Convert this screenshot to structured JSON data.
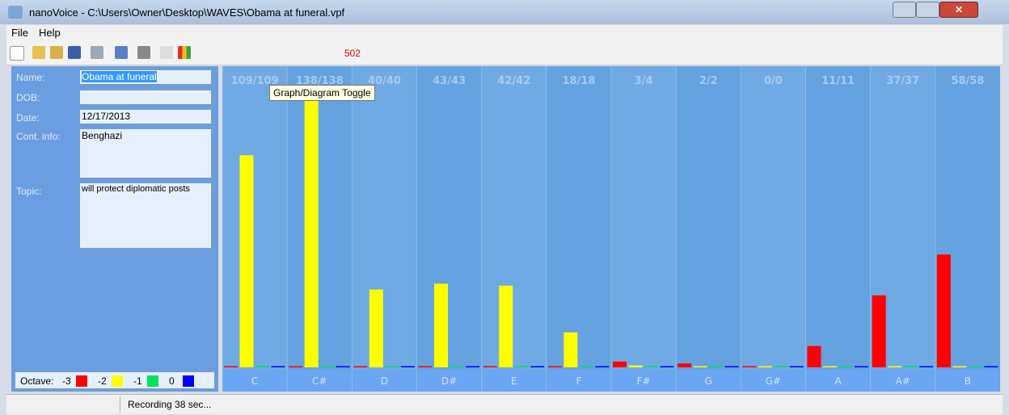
{
  "window": {
    "title": "nanoVoice - C:\\Users\\Owner\\Desktop\\WAVES\\Obama at funeral.vpf"
  },
  "menu": [
    "File",
    "Help"
  ],
  "toolbar": {
    "counter": 502
  },
  "tooltip": "Graph/Diagram Toggle",
  "form": {
    "fields": [
      {
        "label": "Name:",
        "value": "Obama at funeral"
      },
      {
        "label": "DOB:"
      },
      {
        "label": "Date:",
        "value": "12/17/2013"
      },
      {
        "label": "Cont. info:",
        "value": "Benghazi"
      },
      {
        "label": "Topic:",
        "value": "will protect diplomatic posts"
      }
    ]
  },
  "legend_title": "Octave:",
  "status": "Recording 38 sec...",
  "chart_data": {
    "type": "bar",
    "categories": [
      "C",
      "C#",
      "D",
      "D#",
      "E",
      "F",
      "F#",
      "G",
      "G#",
      "A",
      "A#",
      "B"
    ],
    "column_labels": [
      "109/109",
      "138/138",
      "40/40",
      "43/43",
      "42/42",
      "18/18",
      "3/4",
      "2/2",
      "0/0",
      "11/11",
      "37/37",
      "58/58"
    ],
    "series": [
      {
        "name": "-3",
        "color": "#ff0000",
        "values": [
          0,
          0,
          0,
          0,
          0,
          0,
          3,
          2,
          0,
          11,
          37,
          58
        ]
      },
      {
        "name": "-2",
        "color": "#ffff00",
        "values": [
          109,
          138,
          40,
          43,
          42,
          18,
          1,
          0,
          0,
          0,
          0,
          0
        ]
      },
      {
        "name": "-1",
        "color": "#00e060",
        "values": [
          0,
          0,
          0,
          0,
          0,
          0,
          0,
          0,
          0,
          0,
          0,
          0
        ]
      },
      {
        "name": "0",
        "color": "#0000ff",
        "values": [
          0,
          0,
          0,
          0,
          0,
          0,
          0,
          0,
          0,
          0,
          0,
          0
        ]
      }
    ]
  }
}
